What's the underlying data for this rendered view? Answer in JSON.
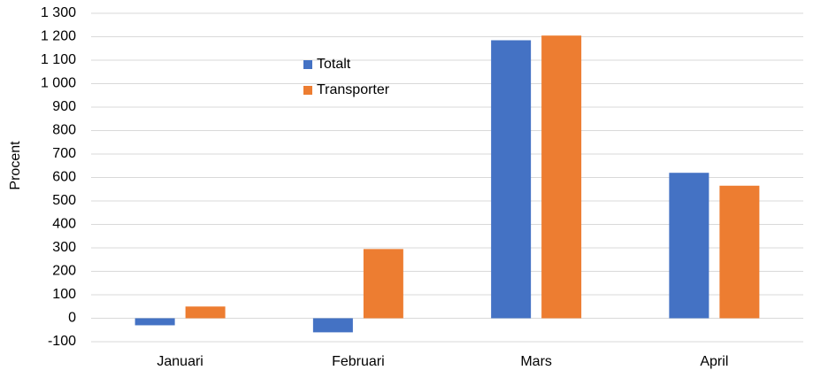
{
  "chart_data": {
    "type": "bar",
    "y_label": "Procent",
    "categories": [
      "Januari",
      "Februari",
      "Mars",
      "April"
    ],
    "series": [
      {
        "name": "Totalt",
        "color": "#4472c4",
        "values": [
          -30,
          -60,
          1185,
          620
        ]
      },
      {
        "name": "Transporter",
        "color": "#ed7d31",
        "values": [
          50,
          295,
          1205,
          565
        ]
      }
    ],
    "ylim": [
      -100,
      1300
    ],
    "yticks": [
      -100,
      0,
      100,
      200,
      300,
      400,
      500,
      600,
      700,
      800,
      900,
      {
        "value": 1000,
        "label": "1 000"
      },
      {
        "value": 1100,
        "label": "1 100"
      },
      {
        "value": 1200,
        "label": "1 200"
      },
      {
        "value": 1300,
        "label": "1 300"
      }
    ],
    "grid": true,
    "legend": "top"
  }
}
